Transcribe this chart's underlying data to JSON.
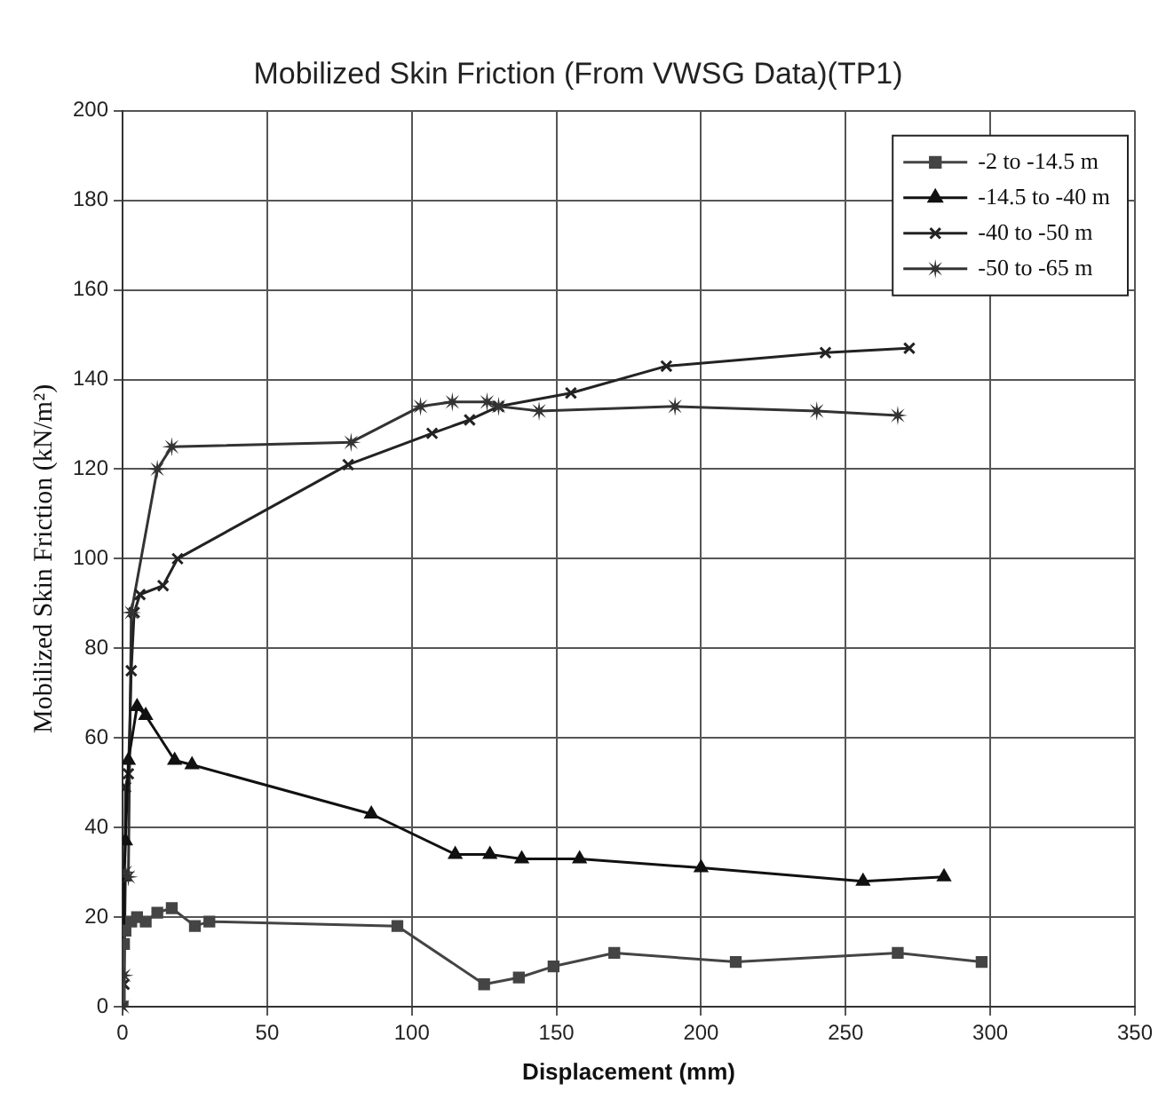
{
  "chart_data": {
    "type": "line",
    "title": "Mobilized Skin Friction (From VWSG Data)(TP1)",
    "xlabel": "Displacement (mm)",
    "ylabel": "Mobilized Skin Friction (kN/m²)",
    "xlim": [
      0,
      350
    ],
    "xticks": [
      0,
      50,
      100,
      150,
      200,
      250,
      300,
      350
    ],
    "ylim": [
      0,
      200
    ],
    "yticks": [
      0,
      20,
      40,
      60,
      80,
      100,
      120,
      140,
      160,
      180,
      200
    ],
    "grid": true,
    "legend": "top right",
    "series": [
      {
        "name": "-2 to -14.5 m",
        "color": "#444444",
        "marker": "square",
        "x": [
          0,
          0.5,
          1,
          3,
          5,
          8,
          12,
          17,
          25,
          30,
          95,
          125,
          137,
          149,
          170,
          212,
          268,
          297
        ],
        "values": [
          0,
          14,
          17,
          19,
          20,
          19,
          21,
          22,
          18,
          19,
          18,
          5,
          6.5,
          9,
          12,
          10,
          12,
          10
        ]
      },
      {
        "name": "-14.5 to -40 m",
        "color": "#111111",
        "marker": "triangle",
        "x": [
          0,
          0.5,
          1,
          2,
          5,
          8,
          18,
          24,
          86,
          115,
          127,
          138,
          158,
          200,
          256,
          284
        ],
        "values": [
          0,
          29,
          37,
          55,
          67,
          65,
          55,
          54,
          43,
          34,
          34,
          33,
          33,
          31,
          28,
          29
        ]
      },
      {
        "name": "-40 to -50 m",
        "color": "#222222",
        "marker": "cross",
        "x": [
          0,
          0.5,
          1,
          2,
          3,
          4,
          6,
          14,
          19,
          78,
          107,
          120,
          130,
          155,
          188,
          243,
          272
        ],
        "values": [
          0,
          5,
          49,
          52,
          75,
          88,
          92,
          94,
          100,
          121,
          128,
          131,
          134,
          137,
          143,
          146,
          147
        ]
      },
      {
        "name": "-50 to -65 m",
        "color": "#333333",
        "marker": "star",
        "x": [
          0,
          0.5,
          1,
          2,
          3,
          12,
          17,
          79,
          103,
          114,
          126,
          130,
          144,
          191,
          240,
          268
        ],
        "values": [
          0,
          7,
          30,
          29,
          88,
          120,
          125,
          126,
          134,
          135,
          135,
          134,
          133,
          134,
          133,
          132
        ]
      }
    ]
  }
}
